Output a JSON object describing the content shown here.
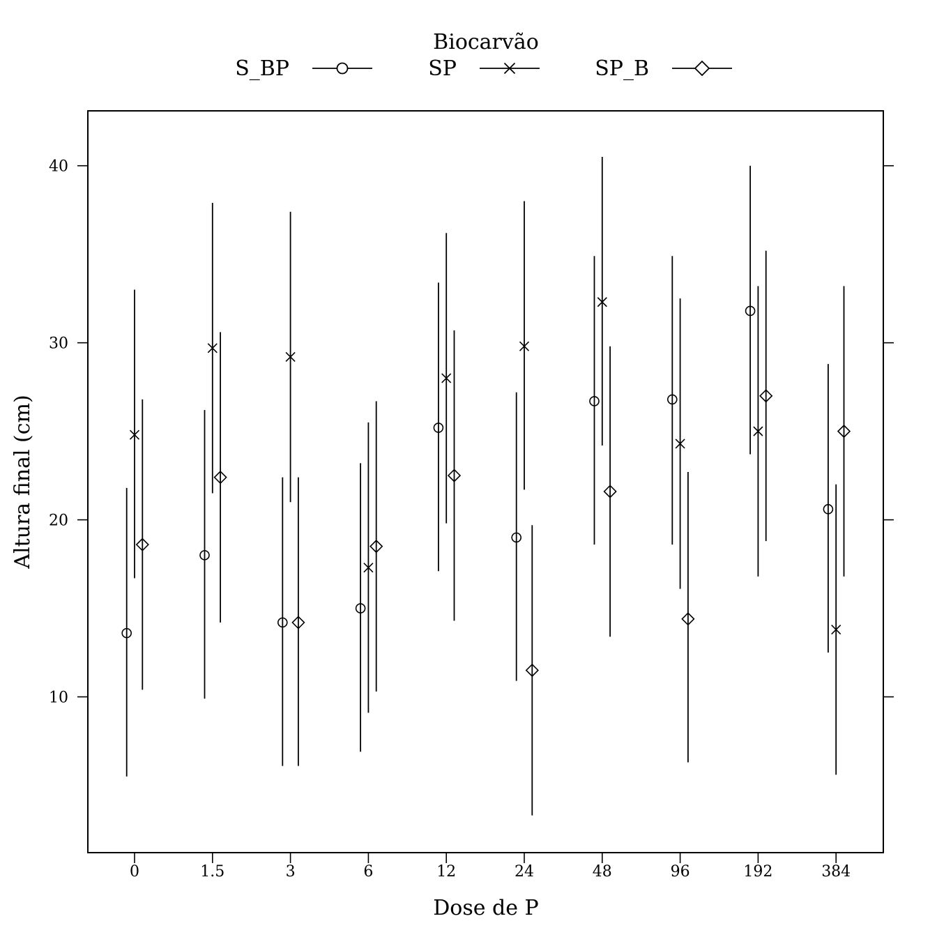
{
  "chart_data": {
    "type": "scatter",
    "title": "",
    "xlabel": "Dose de P",
    "ylabel": "Altura final (cm)",
    "ylim": [
      1.2,
      43.1
    ],
    "y_ticks": [
      "10",
      "20",
      "30",
      "40"
    ],
    "categories": [
      "0",
      "1.5",
      "3",
      "6",
      "12",
      "24",
      "48",
      "96",
      "192",
      "384"
    ],
    "legend": {
      "title": "Biocarvão",
      "placement": "top",
      "entries": [
        "S_BP",
        "SP",
        "SP_B"
      ]
    },
    "series": [
      {
        "name": "S_BP",
        "marker": "circle",
        "values": [
          13.6,
          18.0,
          14.2,
          15.0,
          25.2,
          19.0,
          26.7,
          26.8,
          31.8,
          20.6
        ],
        "lower": [
          5.5,
          9.9,
          6.1,
          6.9,
          17.1,
          10.9,
          18.6,
          18.6,
          23.7,
          12.5
        ],
        "upper": [
          21.8,
          26.2,
          22.4,
          23.2,
          33.4,
          27.2,
          34.9,
          34.9,
          40.0,
          28.8
        ]
      },
      {
        "name": "SP",
        "marker": "x",
        "values": [
          24.8,
          29.7,
          29.2,
          17.3,
          28.0,
          29.8,
          32.3,
          24.3,
          25.0,
          13.8
        ],
        "lower": [
          16.7,
          21.5,
          21.0,
          9.1,
          19.8,
          21.7,
          24.2,
          16.1,
          16.8,
          5.6
        ],
        "upper": [
          33.0,
          37.9,
          37.4,
          25.5,
          36.2,
          38.0,
          40.5,
          32.5,
          33.2,
          22.0
        ]
      },
      {
        "name": "SP_B",
        "marker": "diamond",
        "values": [
          18.6,
          22.4,
          14.2,
          18.5,
          22.5,
          11.5,
          21.6,
          14.4,
          27.0,
          25.0
        ],
        "lower": [
          10.4,
          14.2,
          6.1,
          10.3,
          14.3,
          3.3,
          13.4,
          6.3,
          18.8,
          16.8
        ],
        "upper": [
          26.8,
          30.6,
          22.4,
          26.7,
          30.7,
          19.7,
          29.8,
          22.7,
          35.2,
          33.2
        ]
      }
    ]
  }
}
